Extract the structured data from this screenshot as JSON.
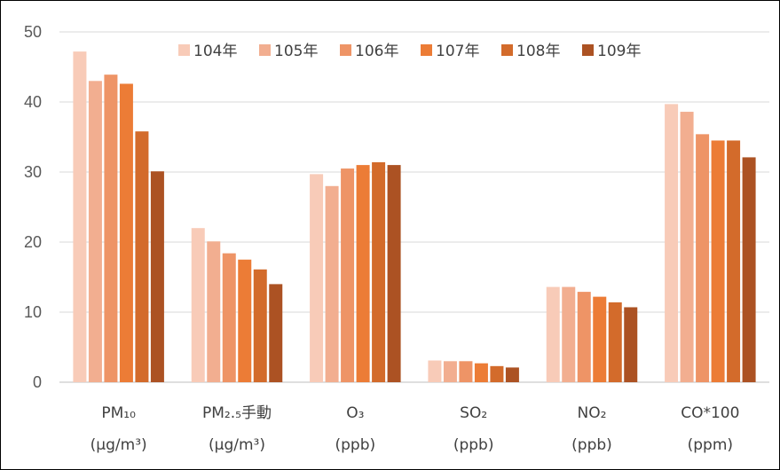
{
  "chart_data": {
    "type": "bar",
    "title": "",
    "xlabel": "",
    "ylabel": "",
    "ylim": [
      0,
      50
    ],
    "yticks": [
      0,
      10,
      20,
      30,
      40,
      50
    ],
    "grid": "horizontal",
    "legend_position": "top-center",
    "categories": [
      [
        "PM₁₀",
        "(μg/m³)"
      ],
      [
        "PM₂.₅手動",
        "(μg/m³)"
      ],
      [
        "O₃",
        "(ppb)"
      ],
      [
        "SO₂",
        "(ppb)"
      ],
      [
        "NO₂",
        "(ppb)"
      ],
      [
        "CO*100",
        "(ppm)"
      ]
    ],
    "series": [
      {
        "name": "104年",
        "color": "#F8CBB8",
        "values": [
          47.2,
          22.0,
          29.7,
          3.1,
          13.6,
          39.7
        ]
      },
      {
        "name": "105年",
        "color": "#F2AE90",
        "values": [
          43.0,
          20.1,
          28.0,
          3.0,
          13.6,
          38.6
        ]
      },
      {
        "name": "106年",
        "color": "#EE9466",
        "values": [
          43.9,
          18.4,
          30.5,
          3.0,
          12.9,
          35.4
        ]
      },
      {
        "name": "107年",
        "color": "#EC7C36",
        "values": [
          42.6,
          17.5,
          31.0,
          2.7,
          12.2,
          34.5
        ]
      },
      {
        "name": "108年",
        "color": "#D36B2B",
        "values": [
          35.8,
          16.1,
          31.4,
          2.3,
          11.4,
          34.5
        ]
      },
      {
        "name": "109年",
        "color": "#AC5223",
        "values": [
          30.1,
          14.0,
          31.0,
          2.1,
          10.7,
          32.1
        ]
      }
    ]
  }
}
